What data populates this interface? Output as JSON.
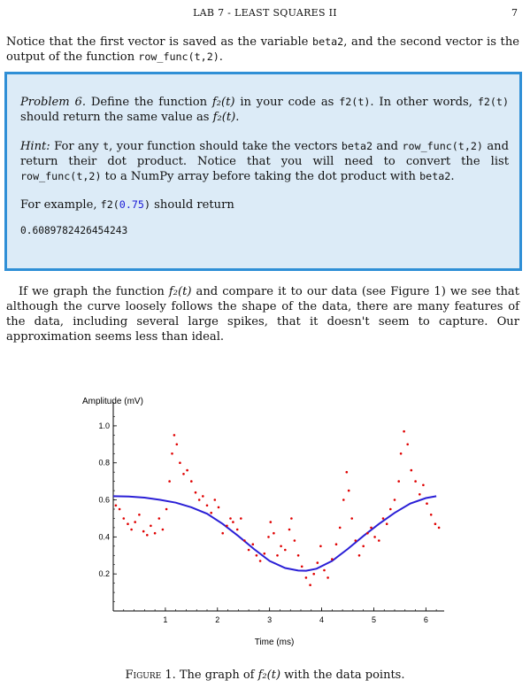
{
  "header": {
    "title": "LAB 7 - LEAST SQUARES II",
    "page_number": "7"
  },
  "intro": {
    "before_beta2": "Notice that the first vector is saved as the variable ",
    "beta2": "beta2",
    "middle": ", and the second vector is the output of the function ",
    "func": "row_func(t,2)",
    "end": "."
  },
  "problem": {
    "label": "Problem 6.",
    "line1_a": " Define the function ",
    "f2_math": "f₂(t)",
    "line1_b": " in your code as ",
    "f2_code": "f2(t)",
    "line1_c": ". In other words, ",
    "f2_code2": "f2(t)",
    "line1_d": " should return the same value as ",
    "f2_math2": "f₂(t)",
    "line1_e": ".",
    "hint_label": "Hint:",
    "hint_a": " For any ",
    "hint_t": "t",
    "hint_b": ", your function should take the vectors ",
    "hint_beta2": "beta2",
    "hint_c": " and ",
    "hint_rowfunc": "row_func(t,2)",
    "hint_d": " and return their dot product. Notice that you will need to convert the list ",
    "hint_rowfunc2": "row_func(t,2)",
    "hint_e": " to a NumPy array before taking the dot product with ",
    "hint_beta2b": "beta2",
    "hint_f": ".",
    "example_a": "For example, ",
    "example_code": "f2(",
    "example_num": "0.75",
    "example_close": ")",
    "example_b": " should return",
    "output": "0.6089782426454243"
  },
  "body": {
    "text_a": "If we graph the function ",
    "f2": "f₂(t)",
    "text_b": " and compare it to our data (see Figure 1) we see that although the curve loosely follows the shape of the data, there are many features of the data, including several large spikes, that it doesn't seem to capture. Our approximation seems less than ideal."
  },
  "figure": {
    "caption_label": "Figure 1.",
    "caption_a": " The graph of ",
    "caption_f2": "f₂(t)",
    "caption_b": " with the data points."
  },
  "chart_data": {
    "type": "scatter",
    "ylabel": "Amplitude (mV)",
    "xlabel": "Time (ms)",
    "xlim": [
      0,
      6.283
    ],
    "ylim": [
      0,
      1.1
    ],
    "x_ticks": [
      "1",
      "2",
      "3",
      "4",
      "5",
      "6"
    ],
    "y_ticks": [
      "0.2",
      "0.4",
      "0.6",
      "0.8",
      "1.0"
    ],
    "grid": false,
    "series": [
      {
        "kind": "points",
        "color": "#e00000",
        "values": [
          [
            0.05,
            0.57
          ],
          [
            0.12,
            0.55
          ],
          [
            0.2,
            0.5
          ],
          [
            0.28,
            0.47
          ],
          [
            0.35,
            0.44
          ],
          [
            0.42,
            0.48
          ],
          [
            0.5,
            0.52
          ],
          [
            0.58,
            0.43
          ],
          [
            0.65,
            0.41
          ],
          [
            0.72,
            0.46
          ],
          [
            0.8,
            0.42
          ],
          [
            0.88,
            0.5
          ],
          [
            0.95,
            0.44
          ],
          [
            1.02,
            0.55
          ],
          [
            1.08,
            0.7
          ],
          [
            1.13,
            0.85
          ],
          [
            1.17,
            0.95
          ],
          [
            1.22,
            0.9
          ],
          [
            1.28,
            0.8
          ],
          [
            1.35,
            0.74
          ],
          [
            1.42,
            0.76
          ],
          [
            1.5,
            0.7
          ],
          [
            1.58,
            0.64
          ],
          [
            1.65,
            0.6
          ],
          [
            1.72,
            0.62
          ],
          [
            1.8,
            0.57
          ],
          [
            1.88,
            0.53
          ],
          [
            1.95,
            0.6
          ],
          [
            2.02,
            0.56
          ],
          [
            2.1,
            0.42
          ],
          [
            2.18,
            0.46
          ],
          [
            2.25,
            0.5
          ],
          [
            2.3,
            0.48
          ],
          [
            2.38,
            0.44
          ],
          [
            2.45,
            0.5
          ],
          [
            2.52,
            0.38
          ],
          [
            2.6,
            0.33
          ],
          [
            2.68,
            0.36
          ],
          [
            2.75,
            0.3
          ],
          [
            2.82,
            0.27
          ],
          [
            2.9,
            0.31
          ],
          [
            2.98,
            0.4
          ],
          [
            3.02,
            0.48
          ],
          [
            3.08,
            0.42
          ],
          [
            3.15,
            0.3
          ],
          [
            3.22,
            0.35
          ],
          [
            3.3,
            0.33
          ],
          [
            3.38,
            0.44
          ],
          [
            3.42,
            0.5
          ],
          [
            3.48,
            0.38
          ],
          [
            3.55,
            0.3
          ],
          [
            3.62,
            0.24
          ],
          [
            3.7,
            0.18
          ],
          [
            3.78,
            0.14
          ],
          [
            3.85,
            0.2
          ],
          [
            3.92,
            0.26
          ],
          [
            3.98,
            0.35
          ],
          [
            4.05,
            0.22
          ],
          [
            4.12,
            0.18
          ],
          [
            4.2,
            0.28
          ],
          [
            4.28,
            0.36
          ],
          [
            4.35,
            0.45
          ],
          [
            4.42,
            0.6
          ],
          [
            4.48,
            0.75
          ],
          [
            4.52,
            0.65
          ],
          [
            4.58,
            0.5
          ],
          [
            4.65,
            0.38
          ],
          [
            4.72,
            0.3
          ],
          [
            4.8,
            0.35
          ],
          [
            4.88,
            0.42
          ],
          [
            4.95,
            0.45
          ],
          [
            5.02,
            0.4
          ],
          [
            5.1,
            0.38
          ],
          [
            5.18,
            0.5
          ],
          [
            5.25,
            0.47
          ],
          [
            5.32,
            0.55
          ],
          [
            5.4,
            0.6
          ],
          [
            5.48,
            0.7
          ],
          [
            5.52,
            0.85
          ],
          [
            5.58,
            0.97
          ],
          [
            5.65,
            0.9
          ],
          [
            5.72,
            0.76
          ],
          [
            5.8,
            0.7
          ],
          [
            5.88,
            0.63
          ],
          [
            5.95,
            0.68
          ],
          [
            6.02,
            0.58
          ],
          [
            6.1,
            0.52
          ],
          [
            6.18,
            0.47
          ],
          [
            6.25,
            0.45
          ]
        ]
      },
      {
        "kind": "line",
        "color": "#2a1fd6",
        "values": [
          [
            0,
            0.62
          ],
          [
            0.3,
            0.618
          ],
          [
            0.6,
            0.612
          ],
          [
            0.9,
            0.6
          ],
          [
            1.2,
            0.585
          ],
          [
            1.5,
            0.56
          ],
          [
            1.8,
            0.525
          ],
          [
            2.1,
            0.47
          ],
          [
            2.4,
            0.405
          ],
          [
            2.7,
            0.335
          ],
          [
            3.0,
            0.27
          ],
          [
            3.3,
            0.232
          ],
          [
            3.55,
            0.218
          ],
          [
            3.7,
            0.217
          ],
          [
            3.9,
            0.228
          ],
          [
            4.2,
            0.27
          ],
          [
            4.5,
            0.335
          ],
          [
            4.8,
            0.405
          ],
          [
            5.1,
            0.47
          ],
          [
            5.4,
            0.53
          ],
          [
            5.7,
            0.58
          ],
          [
            6.0,
            0.61
          ],
          [
            6.2,
            0.62
          ]
        ]
      }
    ]
  }
}
